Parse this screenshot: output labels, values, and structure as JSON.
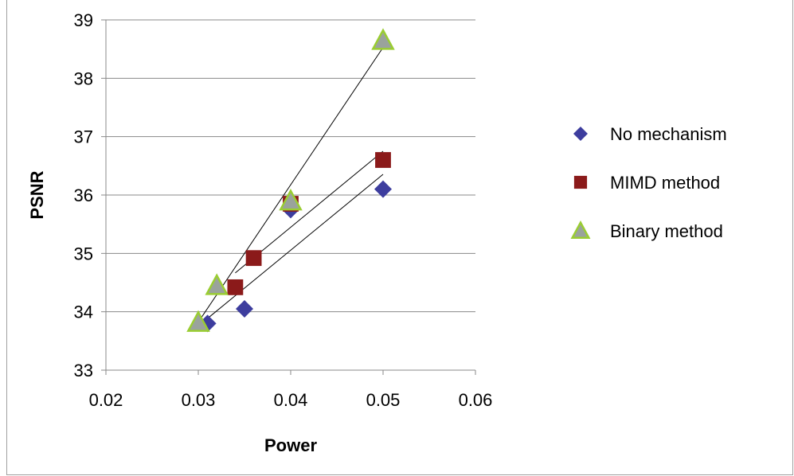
{
  "chart_data": {
    "type": "scatter",
    "title": "",
    "xlabel": "Power",
    "ylabel": "PSNR",
    "xlim": [
      0.02,
      0.06
    ],
    "ylim": [
      33,
      39
    ],
    "xticks": [
      "0.02",
      "0.03",
      "0.04",
      "0.05",
      "0.06"
    ],
    "yticks": [
      "33",
      "34",
      "35",
      "36",
      "37",
      "38",
      "39"
    ],
    "grid": "horizontal",
    "legend_position": "right",
    "trendlines": "linear",
    "series": [
      {
        "name": "No mechanism",
        "marker": "diamond",
        "color": "#3d3d9e",
        "x": [
          0.031,
          0.035,
          0.04,
          0.05
        ],
        "y": [
          33.8,
          34.05,
          35.75,
          36.1
        ]
      },
      {
        "name": "MIMD method",
        "marker": "square",
        "color": "#8b1a1a",
        "x": [
          0.034,
          0.036,
          0.04,
          0.05
        ],
        "y": [
          34.42,
          34.92,
          35.85,
          36.6
        ]
      },
      {
        "name": "Binary method",
        "marker": "triangle",
        "color": "#9aa39c",
        "edge_color": "#9acd32",
        "x": [
          0.03,
          0.032,
          0.04,
          0.05
        ],
        "y": [
          33.82,
          34.45,
          35.9,
          38.65
        ]
      }
    ]
  }
}
